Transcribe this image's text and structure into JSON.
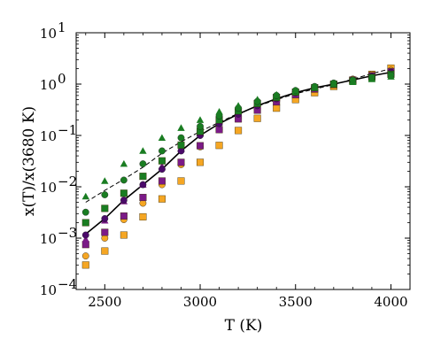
{
  "chart_data": {
    "type": "scatter",
    "xlabel": "T (K)",
    "ylabel": "x(T)/x(3680 K)",
    "yscale": "log",
    "xlim": [
      2350,
      4100
    ],
    "ylim": [
      0.0001,
      10
    ],
    "grid": false,
    "x_ticks": [
      2500,
      3000,
      3500,
      4000
    ],
    "x_tick_labels": [
      "2500",
      "3000",
      "3500",
      "4000"
    ],
    "y_ticks": [
      0.0001,
      0.001,
      0.01,
      0.1,
      1,
      10
    ],
    "y_tick_labels": [
      "10",
      "10",
      "10",
      "10",
      "10",
      "10"
    ],
    "y_tick_exponents": [
      "−4",
      "−3",
      "−2",
      "−1",
      "0",
      "1"
    ],
    "colors": {
      "orange": "#f5a623",
      "purple": "#7b1a87",
      "green": "#1a7d22",
      "dark_purple": "#4b0a6a",
      "black": "#000000"
    },
    "lines": [
      {
        "style": "solid",
        "color": "#000000",
        "x": [
          2400,
          2500,
          2600,
          2700,
          2800,
          2900,
          3000,
          3100,
          3200,
          3300,
          3400,
          3500,
          3600,
          3700,
          3800,
          3900,
          4000
        ],
        "y": [
          0.0012,
          0.0024,
          0.0055,
          0.011,
          0.022,
          0.05,
          0.1,
          0.17,
          0.26,
          0.38,
          0.52,
          0.68,
          0.85,
          1.0,
          1.2,
          1.45,
          1.7
        ]
      },
      {
        "style": "dashed",
        "color": "#000000",
        "x": [
          2400,
          2500,
          2600,
          2700,
          2800,
          2900,
          3000,
          3100,
          3200,
          3300,
          3400,
          3500,
          3600,
          3700,
          3800,
          3900,
          4000
        ],
        "y": [
          0.005,
          0.0085,
          0.014,
          0.024,
          0.045,
          0.075,
          0.12,
          0.18,
          0.27,
          0.37,
          0.5,
          0.65,
          0.8,
          0.98,
          1.25,
          1.6,
          2.0
        ]
      }
    ],
    "series": [
      {
        "marker": "square",
        "color": "#f5a623",
        "x": [
          2400,
          2500,
          2600,
          2700,
          2800,
          2900,
          3000,
          3100,
          3200,
          3300,
          3400,
          3500,
          3600,
          3700,
          3800,
          3900,
          4000
        ],
        "y": [
          0.0003,
          0.00056,
          0.00115,
          0.0026,
          0.0058,
          0.013,
          0.03,
          0.064,
          0.125,
          0.215,
          0.34,
          0.5,
          0.68,
          0.9,
          1.18,
          1.55,
          2.05
        ]
      },
      {
        "marker": "circle",
        "color": "#f5a623",
        "x": [
          2400,
          2500,
          2600,
          2700,
          2800,
          2900,
          3000,
          3100,
          3200,
          3300,
          3400,
          3500,
          3600,
          3700,
          3800,
          3900,
          4000
        ],
        "y": [
          0.00045,
          0.001,
          0.0023,
          0.0048,
          0.011,
          0.027,
          0.06,
          0.13,
          0.22,
          0.33,
          0.47,
          0.64,
          0.82,
          1.0,
          1.25,
          1.55,
          1.85
        ]
      },
      {
        "marker": "square",
        "color": "#7b1a87",
        "x": [
          2400,
          2500,
          2600,
          2700,
          2800,
          2900,
          3000,
          3100,
          3200,
          3300,
          3400,
          3500,
          3600,
          3700,
          3800,
          3900,
          4000
        ],
        "y": [
          0.00075,
          0.0013,
          0.0027,
          0.0062,
          0.013,
          0.03,
          0.063,
          0.13,
          0.21,
          0.31,
          0.45,
          0.62,
          0.8,
          0.98,
          1.2,
          1.45,
          1.75
        ]
      },
      {
        "marker": "triangle",
        "color": "#7b1a87",
        "x": [
          2400,
          2500,
          2600,
          2700,
          2800,
          2900,
          3000,
          3100,
          3200,
          3300,
          3400,
          3500,
          3600,
          3700,
          3800,
          3900,
          4000
        ],
        "y": [
          0.00095,
          0.0022,
          0.0052,
          0.011,
          0.025,
          0.055,
          0.11,
          0.18,
          0.27,
          0.38,
          0.52,
          0.68,
          0.85,
          1.02,
          1.22,
          1.45,
          1.7
        ]
      },
      {
        "marker": "circle",
        "color": "#4b0a6a",
        "x": [
          2400,
          2500,
          2600,
          2700,
          2800,
          2900,
          3000,
          3100,
          3200,
          3300,
          3400,
          3500,
          3600,
          3700,
          3800,
          3900,
          4000
        ],
        "y": [
          0.00115,
          0.0024,
          0.0055,
          0.011,
          0.022,
          0.05,
          0.1,
          0.17,
          0.26,
          0.38,
          0.52,
          0.68,
          0.85,
          1.0,
          1.2,
          1.42,
          1.7
        ]
      },
      {
        "marker": "square",
        "color": "#1a7d22",
        "x": [
          2400,
          2500,
          2600,
          2700,
          2800,
          2900,
          3000,
          3100,
          3200,
          3300,
          3400,
          3500,
          3600,
          3700,
          3800,
          3900,
          4000
        ],
        "y": [
          0.002,
          0.0038,
          0.0075,
          0.016,
          0.032,
          0.065,
          0.12,
          0.2,
          0.3,
          0.42,
          0.55,
          0.7,
          0.85,
          1.0,
          1.15,
          1.35,
          1.55
        ]
      },
      {
        "marker": "circle",
        "color": "#1a7d22",
        "x": [
          2400,
          2500,
          2600,
          2700,
          2800,
          2900,
          3000,
          3100,
          3200,
          3300,
          3400,
          3500,
          3600,
          3700,
          3800,
          3900,
          4000
        ],
        "y": [
          0.0032,
          0.007,
          0.0135,
          0.028,
          0.05,
          0.09,
          0.15,
          0.24,
          0.34,
          0.46,
          0.6,
          0.75,
          0.9,
          1.05,
          1.2,
          1.35,
          1.5
        ]
      },
      {
        "marker": "triangle",
        "color": "#1a7d22",
        "x": [
          2400,
          2500,
          2600,
          2700,
          2800,
          2900,
          3000,
          3100,
          3200,
          3300,
          3400,
          3500,
          3600,
          3700,
          3800,
          3900,
          4000
        ],
        "y": [
          0.0065,
          0.013,
          0.028,
          0.05,
          0.09,
          0.14,
          0.2,
          0.29,
          0.38,
          0.5,
          0.62,
          0.75,
          0.88,
          1.0,
          1.1,
          1.25,
          1.4
        ]
      }
    ]
  }
}
